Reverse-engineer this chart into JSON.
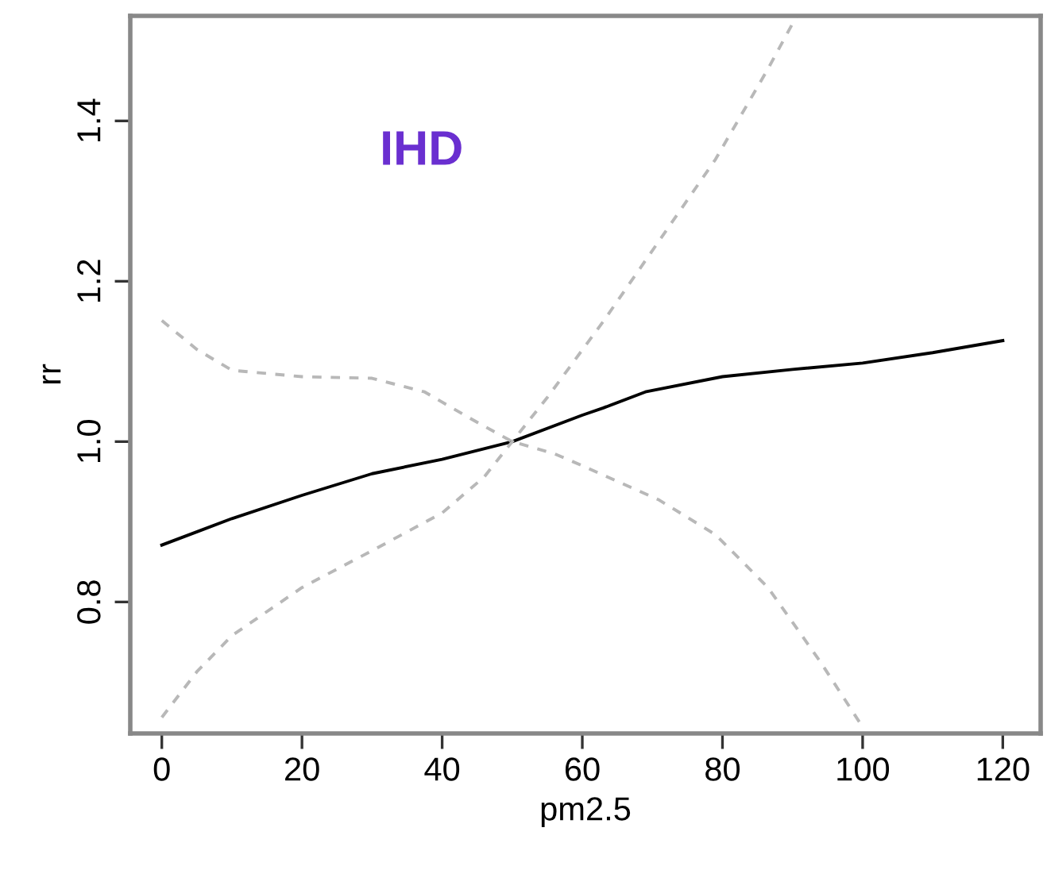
{
  "chart_data": {
    "type": "line",
    "xlabel": "pm2.5",
    "ylabel": "rr",
    "annotations": [
      "IHD"
    ],
    "xlim": [
      -4.5,
      125.4
    ],
    "ylim": [
      0.636,
      1.531
    ],
    "xticks": [
      0,
      20,
      40,
      60,
      80,
      100,
      120
    ],
    "yticks": [
      0.8,
      {
        "value": 1.0,
        "label": "1.0"
      },
      1.2,
      1.4
    ],
    "grid": false,
    "legend": false,
    "marker": "none",
    "series": [
      {
        "color": "#000000",
        "line_style": "solid",
        "x": [
          0,
          10,
          20,
          30,
          40,
          50,
          60,
          63,
          69,
          80,
          90,
          100,
          110,
          120
        ],
        "values": [
          0.871,
          0.904,
          0.933,
          0.96,
          0.978,
          1.0,
          1.033,
          1.042,
          1.062,
          1.081,
          1.09,
          1.098,
          1.111,
          1.126
        ]
      },
      {
        "color": "#b8b8b8",
        "line_style": "dashed",
        "x": [
          0,
          5,
          10,
          20,
          30,
          37.5,
          44,
          50,
          56,
          60,
          71,
          79,
          86.5,
          94,
          100
        ],
        "values": [
          1.151,
          1.115,
          1.089,
          1.081,
          1.079,
          1.062,
          1.029,
          1.0,
          0.985,
          0.97,
          0.927,
          0.884,
          0.818,
          0.725,
          0.644
        ]
      },
      {
        "color": "#b8b8b8",
        "line_style": "dashed",
        "x": [
          0,
          5,
          10,
          20,
          30,
          40,
          46,
          50,
          55,
          63,
          67.6,
          79,
          86.5,
          90.6
        ],
        "values": [
          0.656,
          0.713,
          0.758,
          0.818,
          0.864,
          0.911,
          0.956,
          1.0,
          1.055,
          1.15,
          1.208,
          1.352,
          1.465,
          1.531
        ]
      }
    ]
  }
}
